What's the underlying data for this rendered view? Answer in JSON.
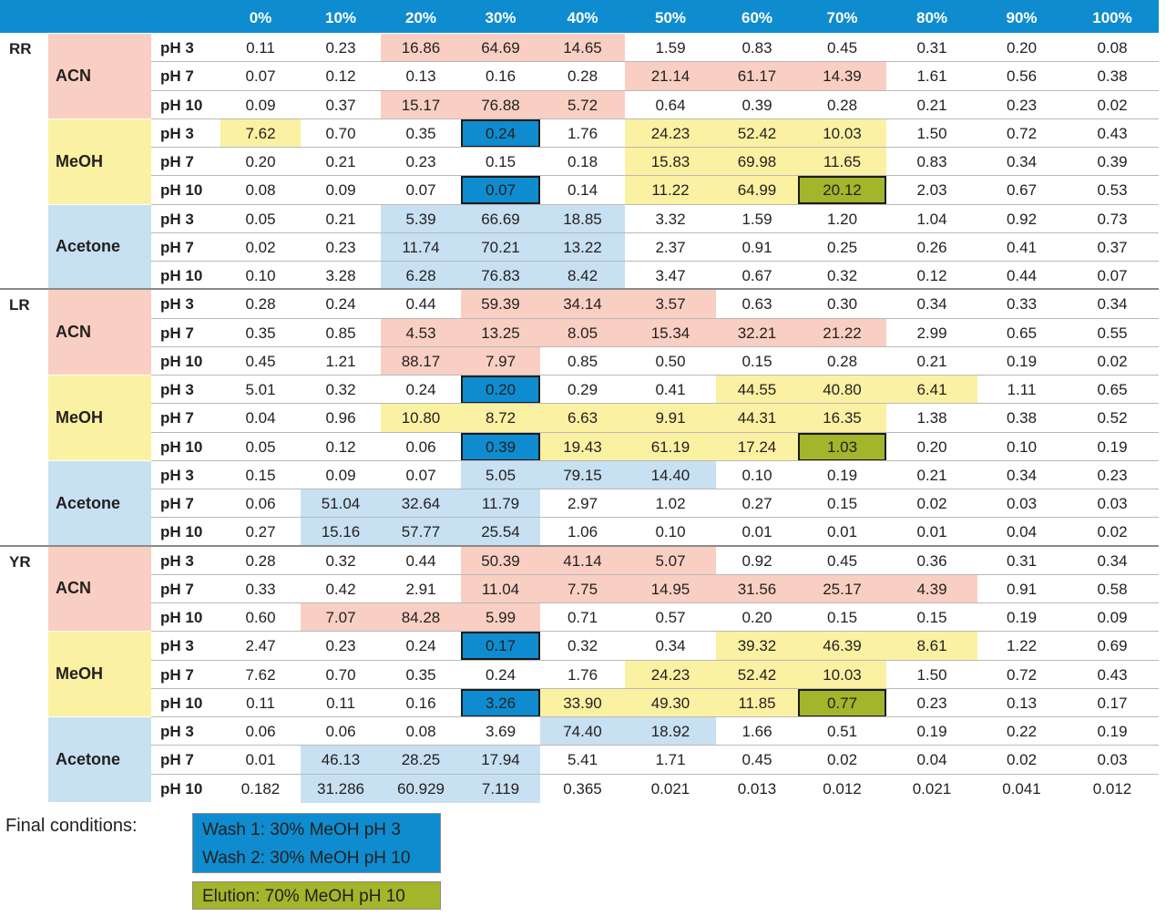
{
  "colors": {
    "header": "#0e8ccf",
    "acn": "#f8cfc2",
    "meoh": "#fbf1a2",
    "acetone": "#c7e0f2",
    "wash": "#0e8ccf",
    "elution": "#a3b52b"
  },
  "columns": [
    "0%",
    "10%",
    "20%",
    "30%",
    "40%",
    "50%",
    "60%",
    "70%",
    "80%",
    "90%",
    "100%"
  ],
  "groups": [
    {
      "analyte": "RR",
      "solvents": [
        {
          "name": "ACN",
          "color": "acn",
          "rows": [
            {
              "ph": "pH 3",
              "values": [
                "0.11",
                "0.23",
                "16.86",
                "64.69",
                "14.65",
                "1.59",
                "0.83",
                "0.45",
                "0.31",
                "0.20",
                "0.08"
              ],
              "hl": [
                2,
                3,
                4
              ],
              "box": []
            },
            {
              "ph": "pH 7",
              "values": [
                "0.07",
                "0.12",
                "0.13",
                "0.16",
                "0.28",
                "21.14",
                "61.17",
                "14.39",
                "1.61",
                "0.56",
                "0.38"
              ],
              "hl": [
                5,
                6,
                7
              ],
              "box": []
            },
            {
              "ph": "pH 10",
              "values": [
                "0.09",
                "0.37",
                "15.17",
                "76.88",
                "5.72",
                "0.64",
                "0.39",
                "0.28",
                "0.21",
                "0.23",
                "0.02"
              ],
              "hl": [
                2,
                3,
                4
              ],
              "box": []
            }
          ]
        },
        {
          "name": "MeOH",
          "color": "meoh",
          "rows": [
            {
              "ph": "pH 3",
              "values": [
                "7.62",
                "0.70",
                "0.35",
                "0.24",
                "1.76",
                "24.23",
                "52.42",
                "10.03",
                "1.50",
                "0.72",
                "0.43"
              ],
              "hl": [
                0,
                5,
                6,
                7
              ],
              "box": [
                3
              ],
              "boxType": "wash"
            },
            {
              "ph": "pH 7",
              "values": [
                "0.20",
                "0.21",
                "0.23",
                "0.15",
                "0.18",
                "15.83",
                "69.98",
                "11.65",
                "0.83",
                "0.34",
                "0.39"
              ],
              "hl": [
                5,
                6,
                7
              ],
              "box": []
            },
            {
              "ph": "pH 10",
              "values": [
                "0.08",
                "0.09",
                "0.07",
                "0.07",
                "0.14",
                "11.22",
                "64.99",
                "20.12",
                "2.03",
                "0.67",
                "0.53"
              ],
              "hl": [
                5,
                6
              ],
              "box": [
                3,
                7
              ],
              "boxType": "mixed"
            }
          ]
        },
        {
          "name": "Acetone",
          "color": "acetone",
          "rows": [
            {
              "ph": "pH 3",
              "values": [
                "0.05",
                "0.21",
                "5.39",
                "66.69",
                "18.85",
                "3.32",
                "1.59",
                "1.20",
                "1.04",
                "0.92",
                "0.73"
              ],
              "hl": [
                2,
                3,
                4
              ],
              "box": []
            },
            {
              "ph": "pH 7",
              "values": [
                "0.02",
                "0.23",
                "11.74",
                "70.21",
                "13.22",
                "2.37",
                "0.91",
                "0.25",
                "0.26",
                "0.41",
                "0.37"
              ],
              "hl": [
                2,
                3,
                4
              ],
              "box": []
            },
            {
              "ph": "pH 10",
              "values": [
                "0.10",
                "3.28",
                "6.28",
                "76.83",
                "8.42",
                "3.47",
                "0.67",
                "0.32",
                "0.12",
                "0.44",
                "0.07"
              ],
              "hl": [
                2,
                3,
                4
              ],
              "box": []
            }
          ]
        }
      ]
    },
    {
      "analyte": "LR",
      "solvents": [
        {
          "name": "ACN",
          "color": "acn",
          "rows": [
            {
              "ph": "pH 3",
              "values": [
                "0.28",
                "0.24",
                "0.44",
                "59.39",
                "34.14",
                "3.57",
                "0.63",
                "0.30",
                "0.34",
                "0.33",
                "0.34"
              ],
              "hl": [
                3,
                4,
                5
              ],
              "box": []
            },
            {
              "ph": "pH 7",
              "values": [
                "0.35",
                "0.85",
                "4.53",
                "13.25",
                "8.05",
                "15.34",
                "32.21",
                "21.22",
                "2.99",
                "0.65",
                "0.55"
              ],
              "hl": [
                2,
                3,
                4,
                5,
                6,
                7
              ],
              "box": []
            },
            {
              "ph": "pH 10",
              "values": [
                "0.45",
                "1.21",
                "88.17",
                "7.97",
                "0.85",
                "0.50",
                "0.15",
                "0.28",
                "0.21",
                "0.19",
                "0.02"
              ],
              "hl": [
                2,
                3
              ],
              "box": []
            }
          ]
        },
        {
          "name": "MeOH",
          "color": "meoh",
          "rows": [
            {
              "ph": "pH 3",
              "values": [
                "5.01",
                "0.32",
                "0.24",
                "0.20",
                "0.29",
                "0.41",
                "44.55",
                "40.80",
                "6.41",
                "1.11",
                "0.65"
              ],
              "hl": [
                6,
                7,
                8
              ],
              "box": [
                3
              ],
              "boxType": "wash"
            },
            {
              "ph": "pH 7",
              "values": [
                "0.04",
                "0.96",
                "10.80",
                "8.72",
                "6.63",
                "9.91",
                "44.31",
                "16.35",
                "1.38",
                "0.38",
                "0.52"
              ],
              "hl": [
                2,
                3,
                4,
                5,
                6,
                7
              ],
              "box": []
            },
            {
              "ph": "pH 10",
              "values": [
                "0.05",
                "0.12",
                "0.06",
                "0.39",
                "19.43",
                "61.19",
                "17.24",
                "1.03",
                "0.20",
                "0.10",
                "0.19"
              ],
              "hl": [
                4,
                5,
                6
              ],
              "box": [
                3,
                7
              ],
              "boxType": "mixed"
            }
          ]
        },
        {
          "name": "Acetone",
          "color": "acetone",
          "rows": [
            {
              "ph": "pH 3",
              "values": [
                "0.15",
                "0.09",
                "0.07",
                "5.05",
                "79.15",
                "14.40",
                "0.10",
                "0.19",
                "0.21",
                "0.34",
                "0.23"
              ],
              "hl": [
                3,
                4,
                5
              ],
              "box": []
            },
            {
              "ph": "pH 7",
              "values": [
                "0.06",
                "51.04",
                "32.64",
                "11.79",
                "2.97",
                "1.02",
                "0.27",
                "0.15",
                "0.02",
                "0.03",
                "0.03"
              ],
              "hl": [
                1,
                2,
                3
              ],
              "box": []
            },
            {
              "ph": "pH 10",
              "values": [
                "0.27",
                "15.16",
                "57.77",
                "25.54",
                "1.06",
                "0.10",
                "0.01",
                "0.01",
                "0.01",
                "0.04",
                "0.02"
              ],
              "hl": [
                1,
                2,
                3
              ],
              "box": []
            }
          ]
        }
      ]
    },
    {
      "analyte": "YR",
      "solvents": [
        {
          "name": "ACN",
          "color": "acn",
          "rows": [
            {
              "ph": "pH 3",
              "values": [
                "0.28",
                "0.32",
                "0.44",
                "50.39",
                "41.14",
                "5.07",
                "0.92",
                "0.45",
                "0.36",
                "0.31",
                "0.34"
              ],
              "hl": [
                3,
                4,
                5
              ],
              "box": []
            },
            {
              "ph": "pH 7",
              "values": [
                "0.33",
                "0.42",
                "2.91",
                "11.04",
                "7.75",
                "14.95",
                "31.56",
                "25.17",
                "4.39",
                "0.91",
                "0.58"
              ],
              "hl": [
                3,
                4,
                5,
                6,
                7,
                8
              ],
              "box": []
            },
            {
              "ph": "pH 10",
              "values": [
                "0.60",
                "7.07",
                "84.28",
                "5.99",
                "0.71",
                "0.57",
                "0.20",
                "0.15",
                "0.15",
                "0.19",
                "0.09"
              ],
              "hl": [
                1,
                2,
                3
              ],
              "box": []
            }
          ]
        },
        {
          "name": "MeOH",
          "color": "meoh",
          "rows": [
            {
              "ph": "pH 3",
              "values": [
                "2.47",
                "0.23",
                "0.24",
                "0.17",
                "0.32",
                "0.34",
                "39.32",
                "46.39",
                "8.61",
                "1.22",
                "0.69"
              ],
              "hl": [
                6,
                7,
                8
              ],
              "box": [
                3
              ],
              "boxType": "wash"
            },
            {
              "ph": "pH 7",
              "values": [
                "7.62",
                "0.70",
                "0.35",
                "0.24",
                "1.76",
                "24.23",
                "52.42",
                "10.03",
                "1.50",
                "0.72",
                "0.43"
              ],
              "hl": [
                5,
                6,
                7
              ],
              "box": []
            },
            {
              "ph": "pH 10",
              "values": [
                "0.11",
                "0.11",
                "0.16",
                "3.26",
                "33.90",
                "49.30",
                "11.85",
                "0.77",
                "0.23",
                "0.13",
                "0.17"
              ],
              "hl": [
                4,
                5,
                6
              ],
              "box": [
                3,
                7
              ],
              "boxType": "mixed"
            }
          ]
        },
        {
          "name": "Acetone",
          "color": "acetone",
          "rows": [
            {
              "ph": "pH 3",
              "values": [
                "0.06",
                "0.06",
                "0.08",
                "3.69",
                "74.40",
                "18.92",
                "1.66",
                "0.51",
                "0.19",
                "0.22",
                "0.19"
              ],
              "hl": [
                4,
                5
              ],
              "box": []
            },
            {
              "ph": "pH 7",
              "values": [
                "0.01",
                "46.13",
                "28.25",
                "17.94",
                "5.41",
                "1.71",
                "0.45",
                "0.02",
                "0.04",
                "0.02",
                "0.03"
              ],
              "hl": [
                1,
                2,
                3
              ],
              "box": []
            },
            {
              "ph": "pH 10",
              "values": [
                "0.182",
                "31.286",
                "60.929",
                "7.119",
                "0.365",
                "0.021",
                "0.013",
                "0.012",
                "0.021",
                "0.041",
                "0.012"
              ],
              "hl": [
                1,
                2,
                3
              ],
              "box": []
            }
          ]
        }
      ]
    }
  ],
  "legend": {
    "title": "Final conditions:",
    "wash1": "Wash 1: 30% MeOH pH 3",
    "wash2": "Wash 2: 30% MeOH pH 10",
    "elution": "Elution: 70% MeOH pH 10"
  }
}
